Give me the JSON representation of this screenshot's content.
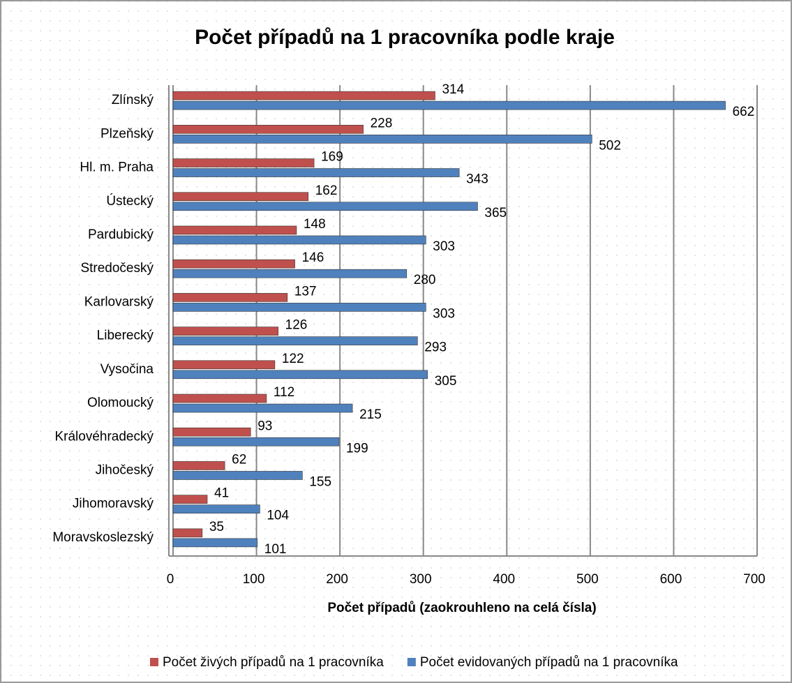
{
  "chart_data": {
    "type": "hbar",
    "title": "Počet případů na 1 pracovníka podle kraje",
    "xlabel": "Počet případů (zaokrouhleno na celá čísla)",
    "categories": [
      "Zlínský",
      "Plzeňský",
      "Hl. m. Praha",
      "Ústecký",
      "Pardubický",
      "Stredočeský",
      "Karlovarský",
      "Liberecký",
      "Vysočina",
      "Olomoucký",
      "Královéhradecký",
      "Jihočeský",
      "Jihomoravský",
      "Moravskoslezský"
    ],
    "series": [
      {
        "name": "Počet živých případů na 1 pracovníka",
        "color": "#c0504d",
        "values": [
          314,
          228,
          169,
          162,
          148,
          146,
          137,
          126,
          122,
          112,
          93,
          62,
          41,
          35
        ]
      },
      {
        "name": "Počet evidovaných případů na 1 pracovníka",
        "color": "#4f81bd",
        "values": [
          662,
          502,
          343,
          365,
          303,
          280,
          303,
          293,
          305,
          215,
          199,
          155,
          104,
          101
        ]
      }
    ],
    "xlim": [
      0,
      700
    ],
    "xticks": [
      0,
      100,
      200,
      300,
      400,
      500,
      600,
      700
    ],
    "grid": true,
    "legend": "bottom"
  }
}
